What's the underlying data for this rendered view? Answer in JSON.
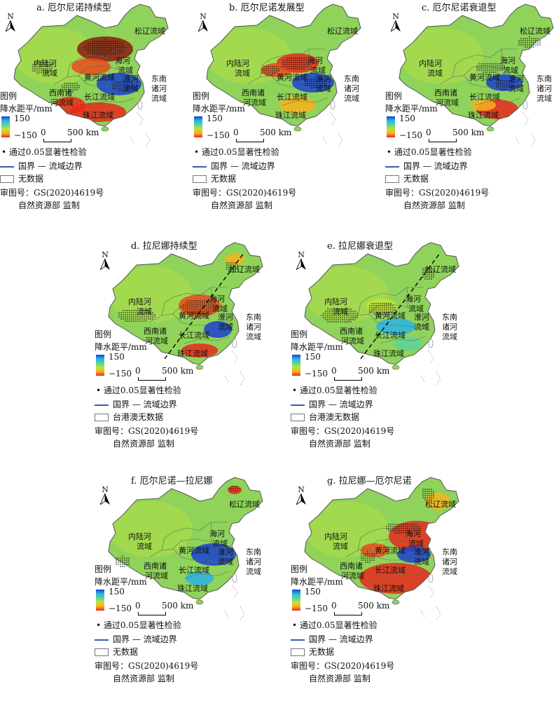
{
  "common": {
    "north": "N",
    "legend_title": "图例",
    "precip_label": "降水距平/mm",
    "max": "150",
    "min": "−150",
    "scale_zero": "0",
    "scale_km": "500 km",
    "signif": "• 通过0.05显著性检验",
    "boundary": "国界 — 流域边界",
    "nodata": "无数据",
    "nodata_hkmt": "台港澳无数据",
    "approval": "审图号：GS(2020)4619号",
    "supervisor": "自然资源部 监制",
    "basins": {
      "inland": "内陆河",
      "inland2": "流域",
      "songliao": "松辽流域",
      "haihe": "海河",
      "haihe2": "流域",
      "huanghe": "黄河流域",
      "huaihe": "淮河",
      "huaihe2": "流域",
      "southwest": "西南诸",
      "southwest2": "河流域",
      "yangtze": "长江流域",
      "southeast": "东南",
      "southeast2": "诸河",
      "southeast3": "流域",
      "pearl": "珠江流域"
    },
    "colors": {
      "wet": "#1a3fd0",
      "dry": "#e8281c",
      "neutral": "#8fd35a"
    }
  },
  "panels": [
    {
      "id": "a",
      "title": "a. 厄尔尼诺持续型"
    },
    {
      "id": "b",
      "title": "b. 厄尔尼诺发展型"
    },
    {
      "id": "c",
      "title": "c. 厄尔尼诺衰退型"
    },
    {
      "id": "d",
      "title": "d. 拉尼娜持续型"
    },
    {
      "id": "e",
      "title": "e. 拉尼娜衰退型"
    },
    {
      "id": "f",
      "title": "f. 厄尔尼诺—拉尼娜"
    },
    {
      "id": "g",
      "title": "g. 拉尼娜—厄尔尼诺"
    }
  ]
}
